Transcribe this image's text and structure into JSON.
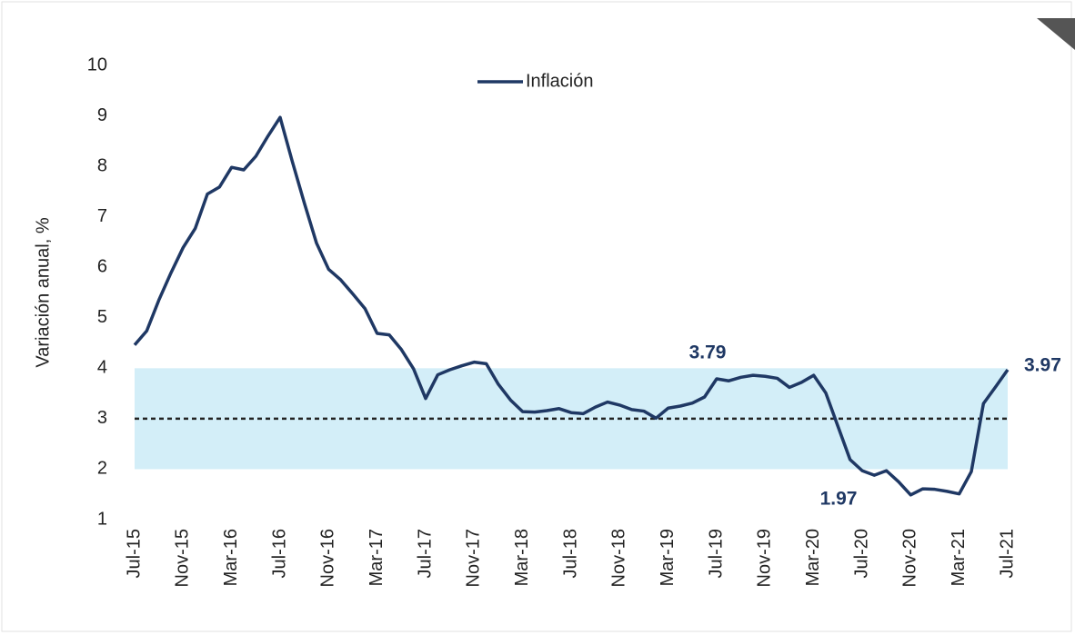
{
  "chart_data": {
    "type": "line",
    "y_label": "Variación anual, %",
    "categories": [
      "Jul-15",
      null,
      null,
      null,
      "Nov-15",
      null,
      null,
      null,
      "Mar-16",
      null,
      null,
      null,
      "Jul-16",
      null,
      null,
      null,
      "Nov-16",
      null,
      null,
      null,
      "Mar-17",
      null,
      null,
      null,
      "Jul-17",
      null,
      null,
      null,
      "Nov-17",
      null,
      null,
      null,
      "Mar-18",
      null,
      null,
      null,
      "Jul-18",
      null,
      null,
      null,
      "Nov-18",
      null,
      null,
      null,
      "Mar-19",
      null,
      null,
      null,
      "Jul-19",
      null,
      null,
      null,
      "Nov-19",
      null,
      null,
      null,
      "Mar-20",
      null,
      null,
      null,
      "Jul-20",
      null,
      null,
      null,
      "Nov-20",
      null,
      null,
      null,
      "Mar-21",
      null,
      null,
      null,
      "Jul-21"
    ],
    "series": [
      {
        "name": "Inflación",
        "color": "#1f3864",
        "values": [
          4.46,
          4.74,
          5.35,
          5.89,
          6.39,
          6.77,
          7.45,
          7.59,
          7.98,
          7.93,
          8.2,
          8.6,
          8.97,
          8.1,
          7.27,
          6.48,
          5.96,
          5.75,
          5.47,
          5.18,
          4.69,
          4.66,
          4.37,
          3.99,
          3.4,
          3.87,
          3.97,
          4.05,
          4.12,
          4.09,
          3.68,
          3.37,
          3.14,
          3.13,
          3.16,
          3.2,
          3.12,
          3.1,
          3.23,
          3.33,
          3.27,
          3.18,
          3.15,
          3.01,
          3.21,
          3.25,
          3.31,
          3.43,
          3.79,
          3.75,
          3.82,
          3.86,
          3.84,
          3.8,
          3.62,
          3.72,
          3.86,
          3.51,
          2.85,
          2.19,
          1.97,
          1.88,
          1.97,
          1.75,
          1.49,
          1.61,
          1.6,
          1.56,
          1.51,
          1.95,
          3.3,
          3.63,
          3.97
        ],
        "value_labels": [
          null,
          null,
          null,
          null,
          null,
          null,
          null,
          null,
          null,
          null,
          null,
          null,
          null,
          null,
          null,
          null,
          null,
          null,
          null,
          null,
          null,
          null,
          null,
          null,
          null,
          null,
          null,
          null,
          null,
          null,
          null,
          null,
          null,
          null,
          null,
          null,
          null,
          null,
          null,
          null,
          null,
          null,
          null,
          null,
          null,
          null,
          null,
          null,
          "3.79",
          null,
          null,
          null,
          null,
          null,
          null,
          null,
          null,
          null,
          null,
          null,
          "1.97",
          null,
          null,
          null,
          null,
          null,
          null,
          null,
          null,
          null,
          null,
          null,
          "3.97"
        ]
      }
    ],
    "target_band": [
      2,
      4
    ],
    "target": 3,
    "band_color": "#d3eef8",
    "ylim": [
      1,
      10
    ],
    "yticks": [
      1,
      2,
      3,
      4,
      5,
      6,
      7,
      8,
      9,
      10
    ],
    "grid": false,
    "legend": "top"
  }
}
